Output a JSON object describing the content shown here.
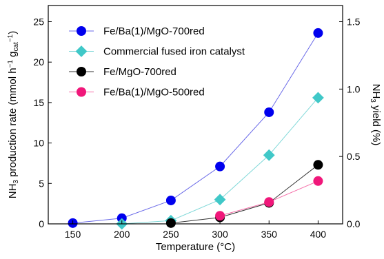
{
  "chart_data": {
    "type": "line",
    "xlabel": "Temperature (°C)",
    "ylabel": {
      "base": "NH",
      "sub1": "3",
      "mid": " production rate (mmol h",
      "sup1": "−1",
      "mid2": " g",
      "sub2": "cat",
      "sup2": "−1",
      "end": ")"
    },
    "y2label": {
      "base": "NH",
      "sub": "3",
      "end": " yield (%)"
    },
    "xlim": [
      125,
      425
    ],
    "ylim": [
      0,
      27
    ],
    "y2lim": [
      0,
      1.62
    ],
    "xticks": [
      150,
      200,
      250,
      300,
      350,
      400
    ],
    "yticks": [
      0,
      5,
      10,
      15,
      20,
      25
    ],
    "y2ticks": [
      "0.0",
      "0.5",
      "1.0",
      "1.5"
    ],
    "y2tick_values": [
      0,
      0.5,
      1.0,
      1.5
    ],
    "legend_position": "top-left",
    "series": [
      {
        "name": "Fe/Ba(1)/MgO-700red",
        "marker": "circle",
        "color": "#0000ee",
        "line_color": "#6a6ae8",
        "x": [
          150,
          200,
          250,
          300,
          350,
          400
        ],
        "y": [
          0.1,
          0.7,
          2.9,
          7.1,
          13.8,
          23.6
        ]
      },
      {
        "name": "Commercial fused iron catalyst",
        "marker": "diamond",
        "color": "#40c8c8",
        "line_color": "#7fd8d8",
        "x": [
          200,
          250,
          300,
          350,
          400
        ],
        "y": [
          0.0,
          0.4,
          3.0,
          8.5,
          15.6
        ]
      },
      {
        "name": "Fe/MgO-700red",
        "marker": "circle",
        "color": "#000000",
        "line_color": "#333333",
        "x": [
          250,
          300,
          350,
          400
        ],
        "y": [
          0.1,
          0.8,
          2.6,
          7.3
        ]
      },
      {
        "name": "Fe/Ba(1)/MgO-500red",
        "marker": "circle",
        "color": "#f0177a",
        "line_color": "#f56aa6",
        "x": [
          300,
          350,
          400
        ],
        "y": [
          1.0,
          2.7,
          5.3
        ]
      }
    ]
  }
}
